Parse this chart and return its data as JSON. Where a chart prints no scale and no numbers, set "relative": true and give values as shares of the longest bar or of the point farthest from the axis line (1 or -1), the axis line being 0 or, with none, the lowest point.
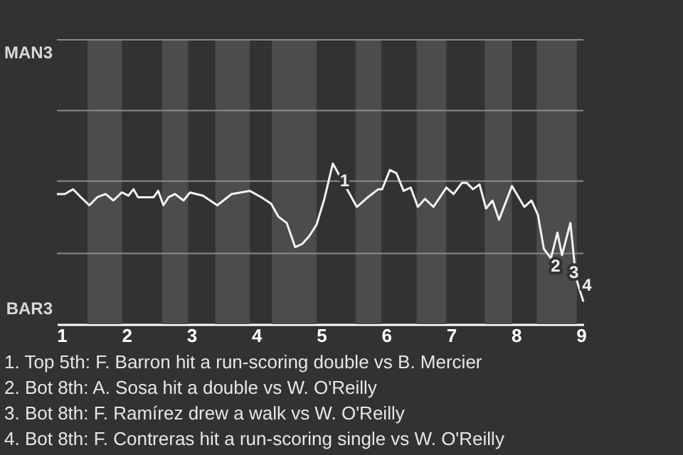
{
  "chart_data": {
    "type": "line",
    "relative": true,
    "x": [
      0.93,
      1.05,
      1.18,
      1.3,
      1.43,
      1.55,
      1.68,
      1.8,
      1.93,
      2.03,
      2.11,
      2.18,
      2.42,
      2.49,
      2.57,
      2.65,
      2.75,
      2.88,
      2.98,
      3.18,
      3.4,
      3.62,
      3.9,
      4.08,
      4.23,
      4.34,
      4.47,
      4.6,
      4.71,
      4.82,
      4.93,
      5.05,
      5.18,
      5.55,
      5.72,
      5.88,
      5.94,
      6.06,
      6.16,
      6.27,
      6.38,
      6.49,
      6.6,
      6.73,
      6.93,
      7.04,
      7.17,
      7.24,
      7.34,
      7.44,
      7.54,
      7.64,
      7.74,
      7.94,
      8.13,
      8.24,
      8.34,
      8.43,
      8.54,
      8.64,
      8.71,
      8.84,
      8.91,
      8.94,
      9.04
    ],
    "series": [
      {
        "color": "#f2f2f2",
        "values": [
          0.81,
          0.81,
          0.84,
          0.79,
          0.74,
          0.79,
          0.81,
          0.77,
          0.82,
          0.8,
          0.84,
          0.79,
          0.79,
          0.83,
          0.74,
          0.79,
          0.81,
          0.77,
          0.82,
          0.8,
          0.74,
          0.81,
          0.83,
          0.79,
          0.75,
          0.67,
          0.63,
          0.48,
          0.5,
          0.55,
          0.62,
          0.78,
          1,
          0.73,
          0.79,
          0.84,
          0.84,
          0.96,
          0.94,
          0.83,
          0.85,
          0.73,
          0.78,
          0.73,
          0.85,
          0.81,
          0.88,
          0.88,
          0.84,
          0.87,
          0.72,
          0.77,
          0.65,
          0.86,
          0.73,
          0.77,
          0.68,
          0.47,
          0.41,
          0.57,
          0.43,
          0.63,
          0.35,
          0.27,
          0.14
        ]
      }
    ],
    "xlim": [
      0.93,
      9.04
    ],
    "xticks": [
      1,
      2,
      3,
      4,
      5,
      6,
      7,
      8,
      9
    ],
    "ref_lines": [
      {
        "axis": "y",
        "value": 0.44,
        "color": "#8a8a8a"
      },
      {
        "axis": "y",
        "value": 0.89,
        "color": "#8a8a8a"
      },
      {
        "axis": "y",
        "value": 1.33,
        "color": "#8a8a8a"
      },
      {
        "axis": "y",
        "value": 1.77,
        "color": "#8a8a8a"
      }
    ],
    "bands": [
      {
        "axis": "x",
        "from": 1.4,
        "to": 1.93,
        "color": "#4d4c4a"
      },
      {
        "axis": "x",
        "from": 2.55,
        "to": 2.95,
        "color": "#4d4c4a"
      },
      {
        "axis": "x",
        "from": 3.37,
        "to": 3.9,
        "color": "#4d4c4a"
      },
      {
        "axis": "x",
        "from": 4.24,
        "to": 4.93,
        "color": "#4d4c4a"
      },
      {
        "axis": "x",
        "from": 5.53,
        "to": 5.93,
        "color": "#4d4c4a"
      },
      {
        "axis": "x",
        "from": 6.47,
        "to": 6.93,
        "color": "#4d4c4a"
      },
      {
        "axis": "x",
        "from": 7.52,
        "to": 7.94,
        "color": "#4d4c4a"
      },
      {
        "axis": "x",
        "from": 8.32,
        "to": 8.94,
        "color": "#4d4c4a"
      }
    ],
    "annotations": [
      {
        "text": "1",
        "x": 5.18,
        "y": 1
      },
      {
        "text": "2",
        "x": 8.43,
        "y": 0.47
      },
      {
        "text": "3",
        "x": 8.71,
        "y": 0.43
      },
      {
        "text": "4",
        "x": 8.91,
        "y": 0.35
      },
      "MAN3",
      "BAR3",
      "1. Top 5th: F. Barron hit a run-scoring double vs B. Mercier",
      "2. Bot 8th: A. Sosa hit a double vs W. O'Reilly",
      "3. Bot 8th: F. Ramírez drew a walk vs W. O'Reilly",
      "4. Bot 8th: F. Contreras hit a run-scoring single vs W. O'Reilly"
    ]
  }
}
